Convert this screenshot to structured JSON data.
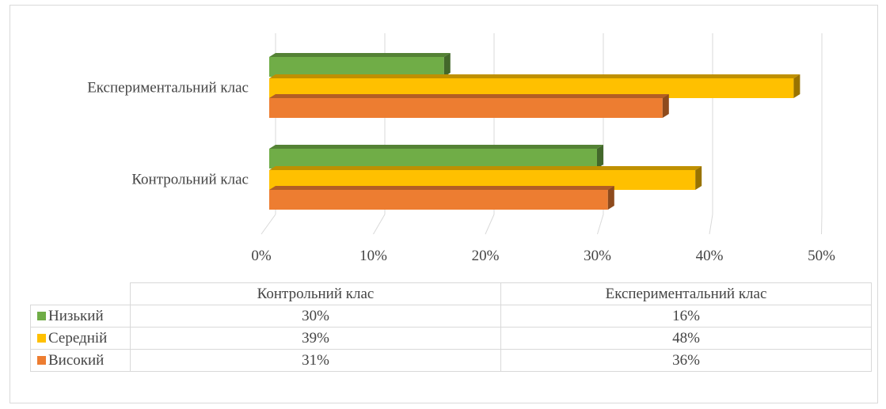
{
  "chart_data": {
    "type": "bar",
    "orientation": "horizontal",
    "style": "3d",
    "categories": [
      "Контрольний клас",
      "Експериментальний клас"
    ],
    "series": [
      {
        "name": "Низький",
        "values": [
          30,
          16
        ],
        "color": "#70ad47",
        "labels": [
          "30%",
          "16%"
        ]
      },
      {
        "name": "Середній",
        "values": [
          39,
          48
        ],
        "color": "#ffc000",
        "labels": [
          "39%",
          "48%"
        ]
      },
      {
        "name": "Високий",
        "values": [
          31,
          36
        ],
        "color": "#ed7d31",
        "labels": [
          "31%",
          "36%"
        ]
      }
    ],
    "x_ticks": [
      "0%",
      "10%",
      "20%",
      "30%",
      "40%",
      "50%"
    ],
    "xlim": [
      0,
      50
    ],
    "grid": true,
    "legend": "data-table"
  }
}
